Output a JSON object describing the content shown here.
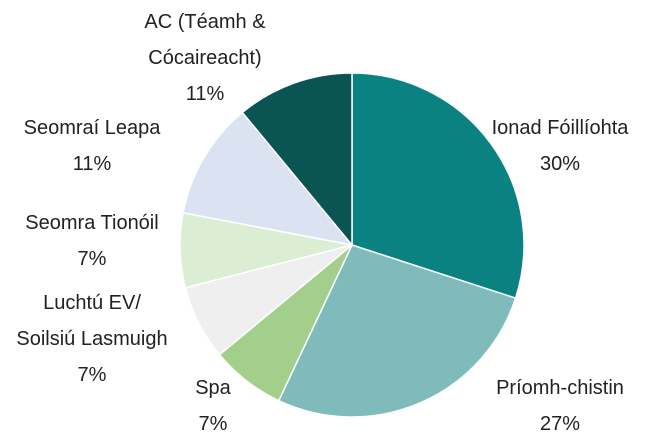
{
  "chart_data": {
    "type": "pie",
    "categories": [
      "Ionad Fóillíohta",
      "Príomh-chistin",
      "Spa",
      "Luchtú EV/\nSoilsiú Lasmuigh",
      "Seomra Tionóil",
      "Seomraí Leapa",
      "AC (Téamh &\nCócaireacht)"
    ],
    "values": [
      30,
      27,
      7,
      7,
      7,
      11,
      11
    ],
    "value_labels": [
      "30%",
      "27%",
      "7%",
      "7%",
      "7%",
      "11%",
      "11%"
    ],
    "colors": [
      "#0b8282",
      "#7fbbbb",
      "#a2cf8b",
      "#efefef",
      "#dbedd3",
      "#dbe3f3",
      "#0a5454"
    ]
  }
}
